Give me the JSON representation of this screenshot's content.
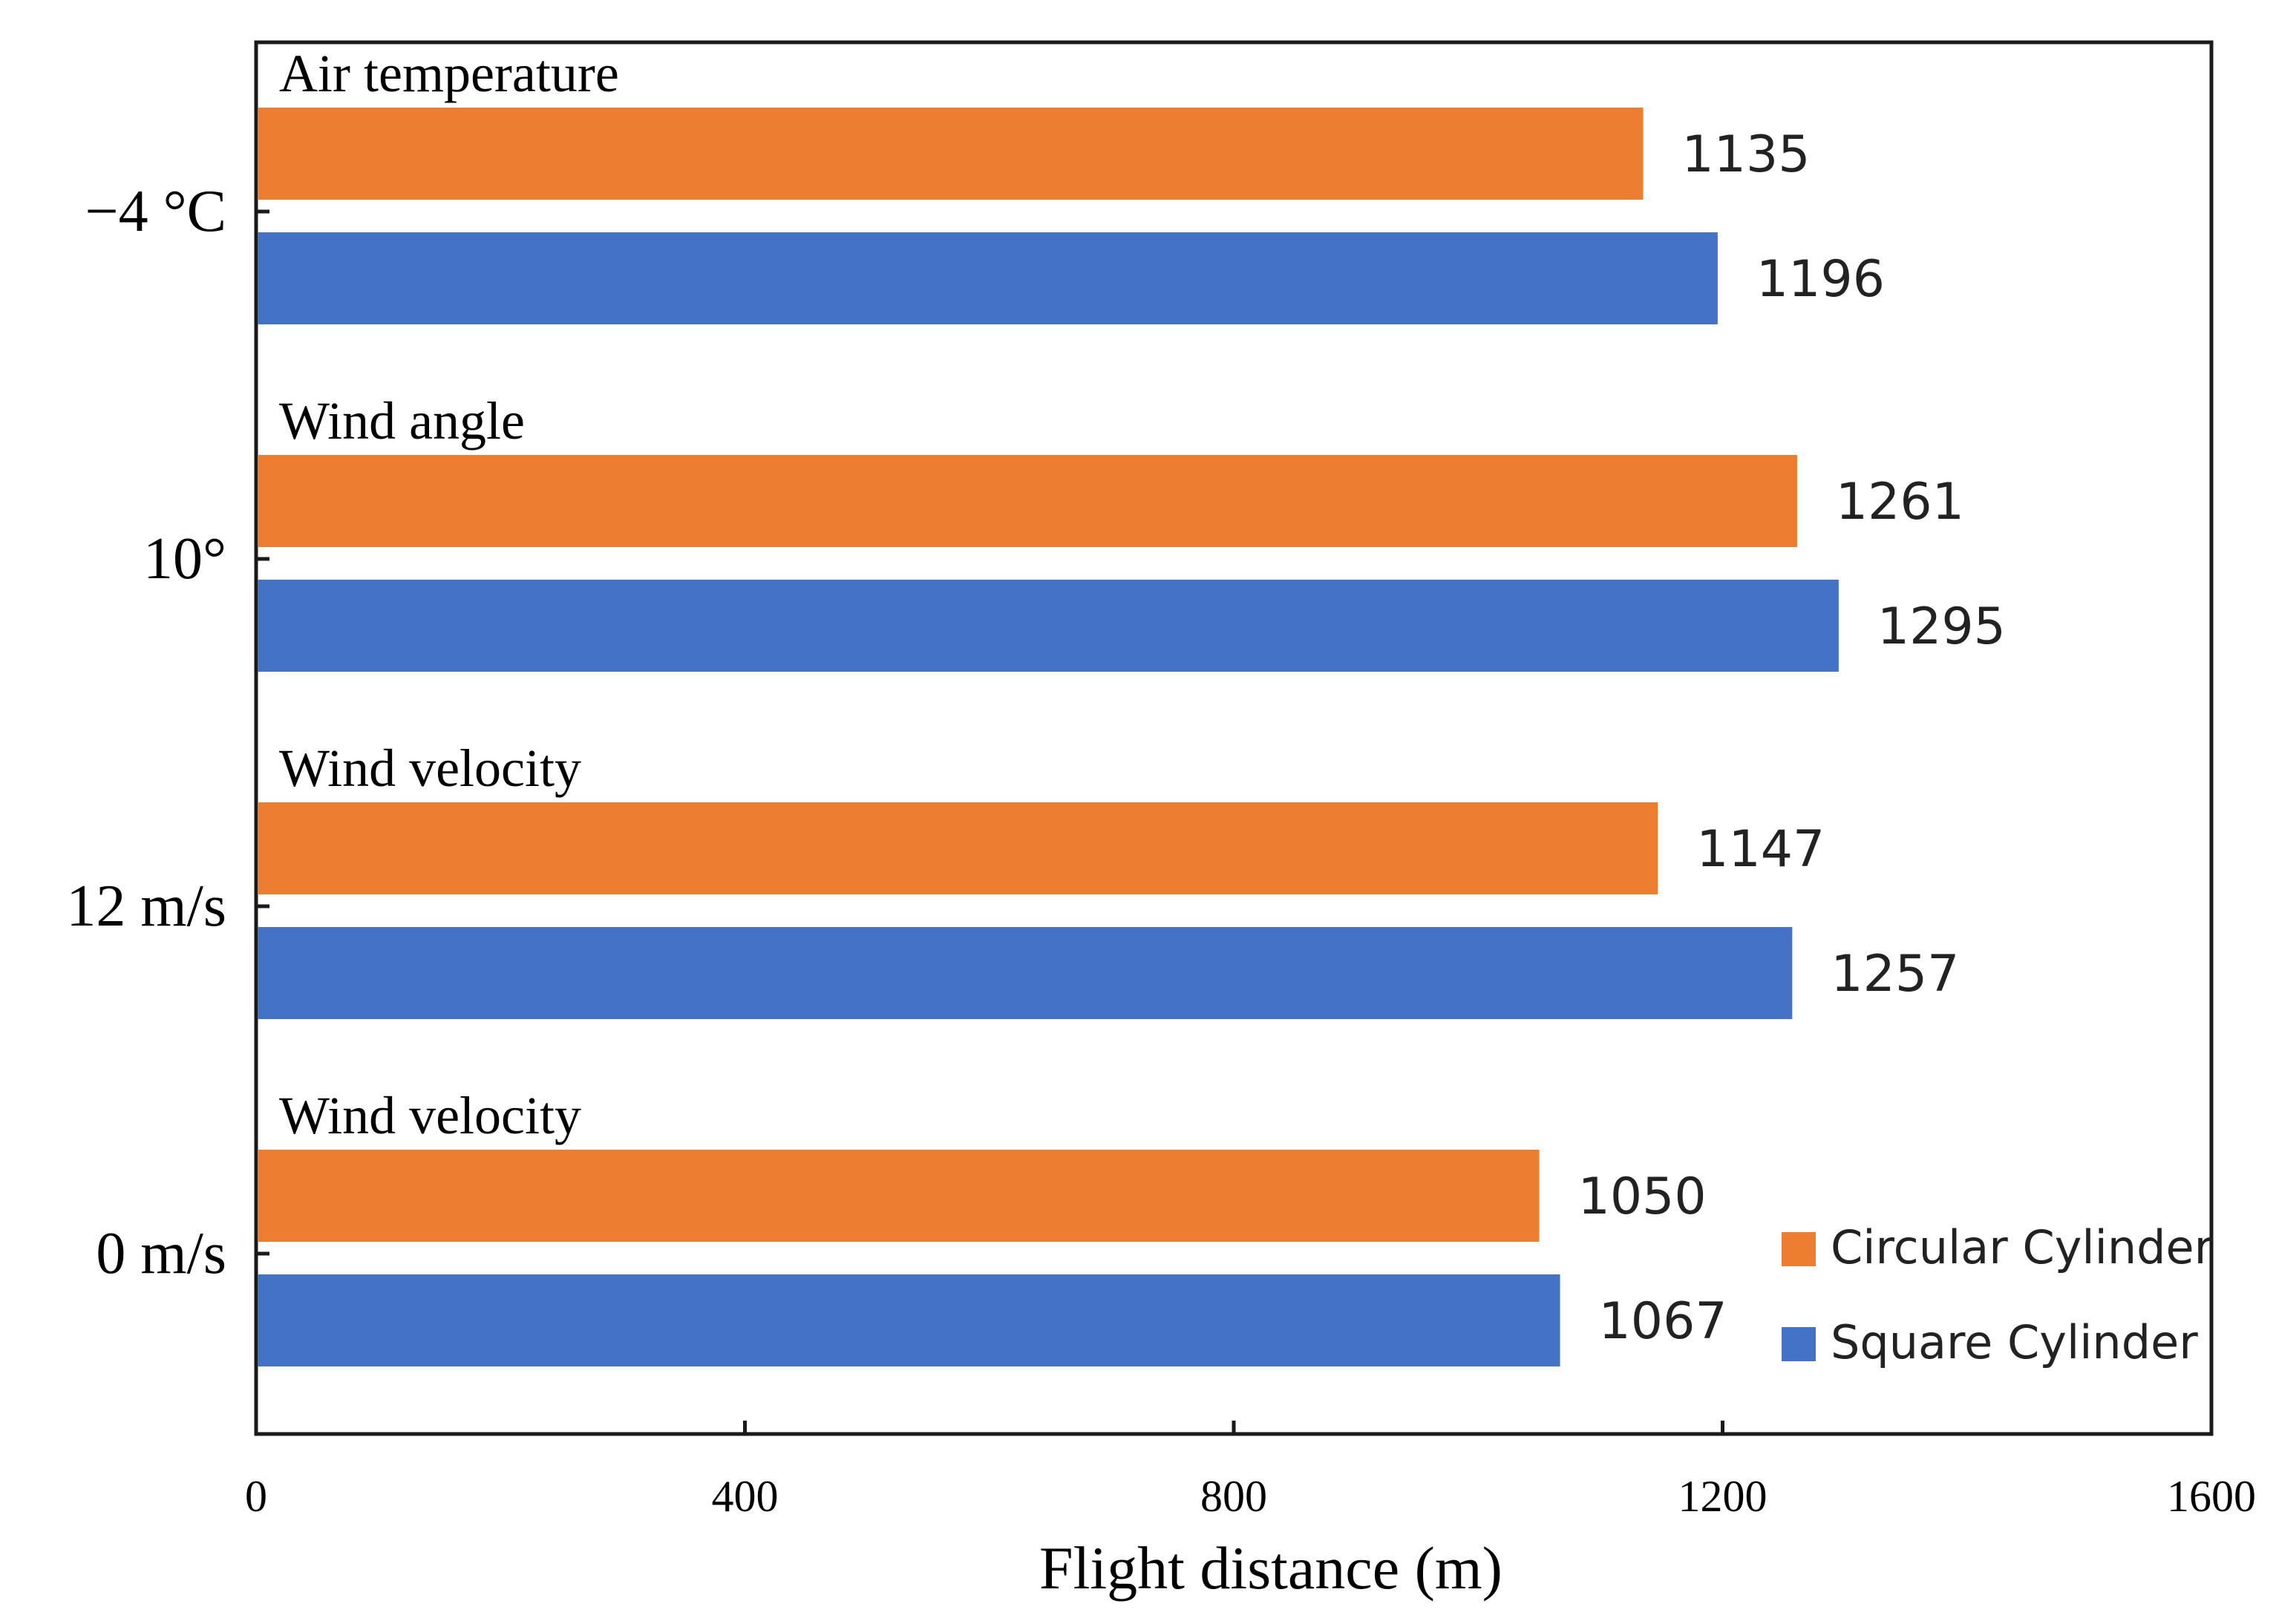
{
  "chart_data": {
    "type": "bar",
    "orientation": "horizontal",
    "xlabel": "Flight distance (m)",
    "xlim": [
      0,
      1600
    ],
    "xticks": [
      0,
      400,
      800,
      1200,
      1600
    ],
    "groups": [
      {
        "category": "−4 °C",
        "title": "Air temperature",
        "values": [
          1135,
          1196
        ]
      },
      {
        "category": "10°",
        "title": "Wind angle",
        "values": [
          1261,
          1295
        ]
      },
      {
        "category": "12  m/s",
        "title": "Wind velocity",
        "values": [
          1147,
          1257
        ]
      },
      {
        "category": "0  m/s",
        "title": "Wind velocity",
        "values": [
          1050,
          1067
        ]
      }
    ],
    "series": [
      {
        "name": "Circular Cylinder",
        "color": "#ED7D31"
      },
      {
        "name": "Square Cylinder",
        "color": "#4472C4"
      }
    ],
    "legend_position": "bottom-right"
  }
}
